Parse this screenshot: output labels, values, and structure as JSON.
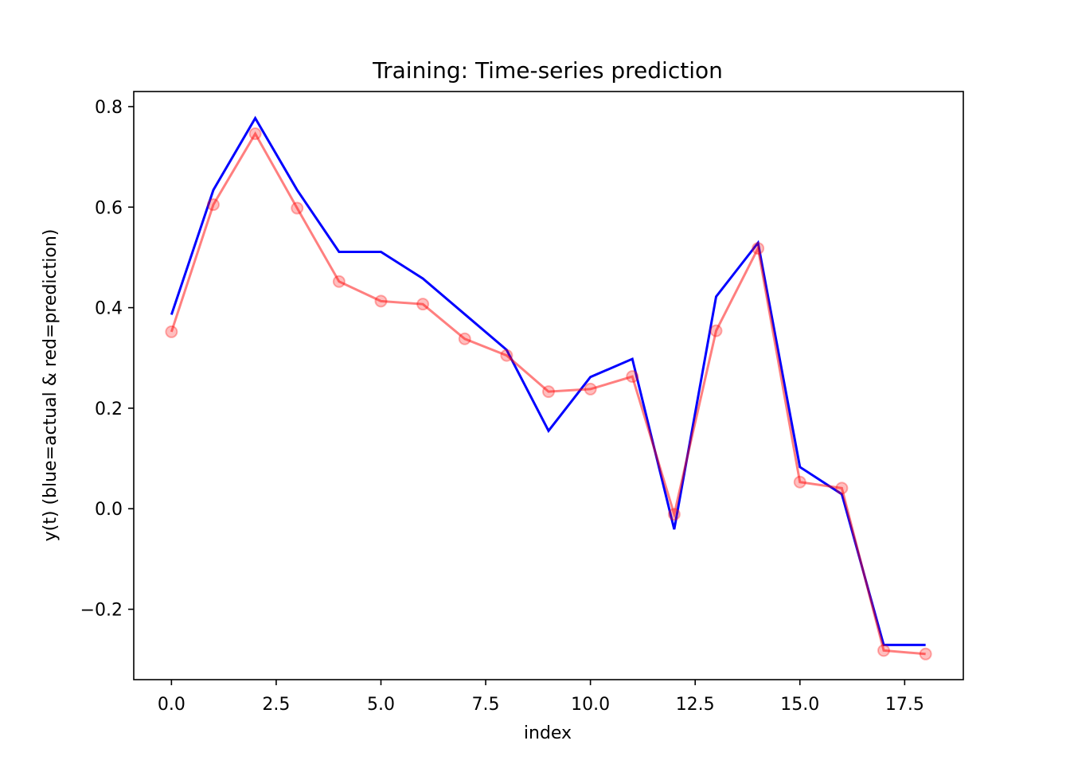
{
  "chart_data": {
    "type": "line",
    "title": "Training: Time-series prediction",
    "xlabel": "index",
    "ylabel": "y(t) (blue=actual & red=prediction)",
    "xlim": [
      -0.9,
      18.9
    ],
    "ylim": [
      -0.34,
      0.83
    ],
    "x_ticks": [
      0.0,
      2.5,
      5.0,
      7.5,
      10.0,
      12.5,
      15.0,
      17.5
    ],
    "x_tick_labels": [
      "0.0",
      "2.5",
      "5.0",
      "7.5",
      "10.0",
      "12.5",
      "15.0",
      "17.5"
    ],
    "y_ticks": [
      -0.2,
      0.0,
      0.2,
      0.4,
      0.6,
      0.8
    ],
    "y_tick_labels": [
      "−0.2",
      "0.0",
      "0.2",
      "0.4",
      "0.6",
      "0.8"
    ],
    "grid": false,
    "x": [
      0,
      1,
      2,
      3,
      4,
      5,
      6,
      7,
      8,
      9,
      10,
      11,
      12,
      13,
      14,
      15,
      16,
      17,
      18
    ],
    "series": [
      {
        "role": "actual",
        "color": "#0000ff",
        "markers": false,
        "values": [
          0.386,
          0.634,
          0.777,
          0.634,
          0.511,
          0.511,
          0.458,
          0.387,
          0.316,
          0.155,
          0.262,
          0.298,
          -0.041,
          0.422,
          0.529,
          0.083,
          0.029,
          -0.271,
          -0.271
        ]
      },
      {
        "role": "prediction",
        "color": "#ff0000",
        "opacity": 0.5,
        "markers": true,
        "values": [
          0.352,
          0.605,
          0.746,
          0.598,
          0.452,
          0.413,
          0.407,
          0.338,
          0.305,
          0.233,
          0.238,
          0.263,
          -0.011,
          0.354,
          0.518,
          0.053,
          0.041,
          -0.282,
          -0.289
        ]
      }
    ]
  }
}
